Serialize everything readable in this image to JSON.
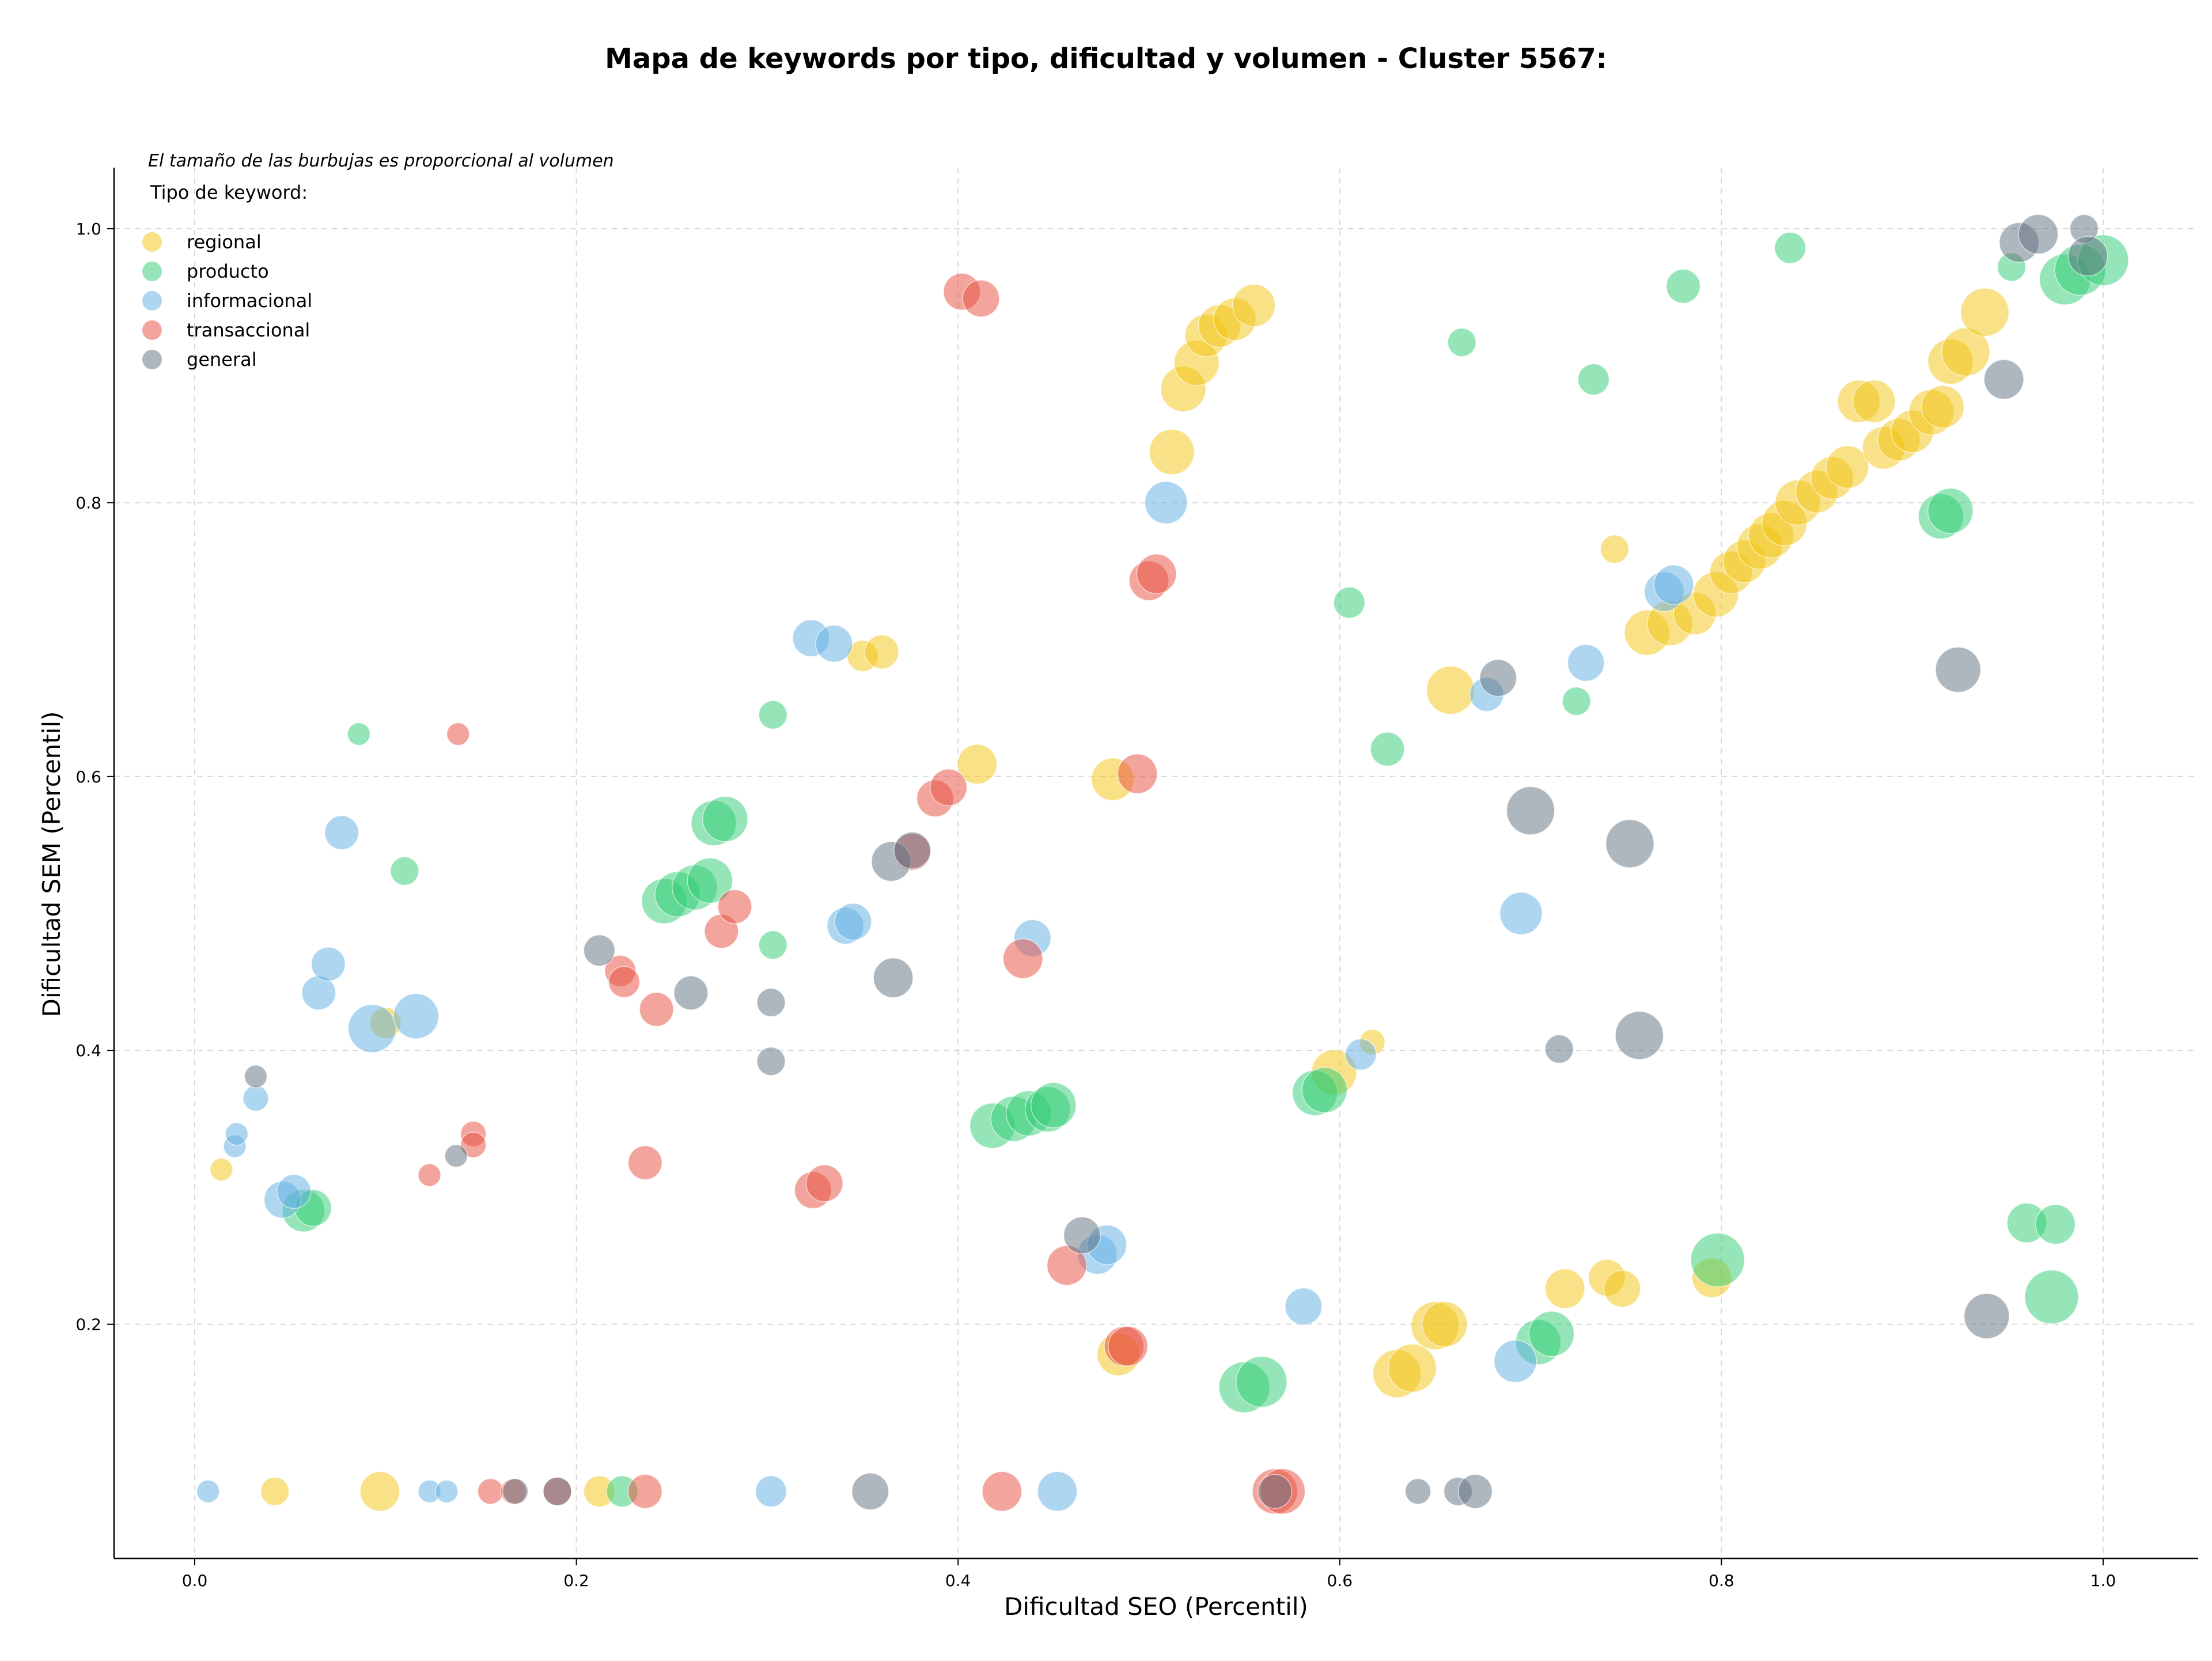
{
  "chart_data": {
    "type": "scatter",
    "title": "Mapa de keywords por tipo, dificultad y volumen - Cluster 5567:",
    "xlabel": "Dificultad SEO (Percentil)",
    "ylabel": "Dificultad SEM (Percentil)",
    "note": "El tamaño de las burbujas es proporcional al volumen",
    "legend_title": "Tipo de keyword:",
    "legend_position": "top-left",
    "grid": true,
    "xlim": [
      -0.04,
      1.065
    ],
    "ylim": [
      0.035,
      1.045
    ],
    "xticks": [
      "0.0",
      "0.2",
      "0.4",
      "0.6",
      "0.8",
      "1.0"
    ],
    "yticks": [
      "0.2",
      "0.4",
      "0.6",
      "0.8",
      "1.0"
    ],
    "series": [
      {
        "name": "regional",
        "color": "#F1C40F",
        "points": [
          [
            0.014,
            0.313,
            8
          ],
          [
            0.042,
            0.078,
            10
          ],
          [
            0.097,
            0.078,
            14
          ],
          [
            0.212,
            0.078,
            11
          ],
          [
            0.1,
            0.42,
            11
          ],
          [
            0.35,
            0.688,
            11
          ],
          [
            0.36,
            0.691,
            12
          ],
          [
            0.41,
            0.609,
            14
          ],
          [
            0.481,
            0.598,
            15
          ],
          [
            0.484,
            0.178,
            15
          ],
          [
            0.512,
            0.837,
            16
          ],
          [
            0.518,
            0.883,
            16
          ],
          [
            0.525,
            0.902,
            16
          ],
          [
            0.53,
            0.922,
            15
          ],
          [
            0.537,
            0.929,
            15
          ],
          [
            0.545,
            0.934,
            15
          ],
          [
            0.555,
            0.944,
            15
          ],
          [
            0.597,
            0.384,
            16
          ],
          [
            0.617,
            0.406,
            9
          ],
          [
            0.63,
            0.164,
            17
          ],
          [
            0.638,
            0.168,
            17
          ],
          [
            0.65,
            0.199,
            17
          ],
          [
            0.655,
            0.2,
            16
          ],
          [
            0.658,
            0.663,
            17
          ],
          [
            0.718,
            0.226,
            14
          ],
          [
            0.74,
            0.234,
            13
          ],
          [
            0.748,
            0.226,
            13
          ],
          [
            0.744,
            0.766,
            10
          ],
          [
            0.761,
            0.705,
            16
          ],
          [
            0.773,
            0.712,
            16
          ],
          [
            0.786,
            0.719,
            15
          ],
          [
            0.795,
            0.234,
            14
          ],
          [
            0.797,
            0.733,
            16
          ],
          [
            0.805,
            0.749,
            15
          ],
          [
            0.812,
            0.757,
            15
          ],
          [
            0.82,
            0.768,
            16
          ],
          [
            0.826,
            0.776,
            16
          ],
          [
            0.833,
            0.785,
            16
          ],
          [
            0.84,
            0.8,
            16
          ],
          [
            0.85,
            0.808,
            15
          ],
          [
            0.858,
            0.818,
            15
          ],
          [
            0.866,
            0.826,
            15
          ],
          [
            0.872,
            0.874,
            15
          ],
          [
            0.88,
            0.874,
            15
          ],
          [
            0.885,
            0.84,
            15
          ],
          [
            0.893,
            0.846,
            15
          ],
          [
            0.9,
            0.852,
            15
          ],
          [
            0.91,
            0.866,
            16
          ],
          [
            0.916,
            0.87,
            15
          ],
          [
            0.92,
            0.903,
            16
          ],
          [
            0.928,
            0.91,
            17
          ],
          [
            0.938,
            0.939,
            17
          ]
        ]
      },
      {
        "name": "producto",
        "color": "#2ECC71",
        "points": [
          [
            0.086,
            0.631,
            8
          ],
          [
            0.11,
            0.531,
            10
          ],
          [
            0.057,
            0.283,
            15
          ],
          [
            0.062,
            0.285,
            13
          ],
          [
            0.224,
            0.078,
            11
          ],
          [
            0.246,
            0.509,
            16
          ],
          [
            0.253,
            0.514,
            16
          ],
          [
            0.262,
            0.519,
            16
          ],
          [
            0.27,
            0.524,
            16
          ],
          [
            0.272,
            0.566,
            16
          ],
          [
            0.278,
            0.569,
            16
          ],
          [
            0.303,
            0.645,
            10
          ],
          [
            0.303,
            0.477,
            10
          ],
          [
            0.418,
            0.345,
            16
          ],
          [
            0.429,
            0.35,
            16
          ],
          [
            0.437,
            0.354,
            16
          ],
          [
            0.447,
            0.357,
            16
          ],
          [
            0.45,
            0.36,
            16
          ],
          [
            0.55,
            0.154,
            18
          ],
          [
            0.559,
            0.158,
            18
          ],
          [
            0.587,
            0.369,
            16
          ],
          [
            0.592,
            0.371,
            16
          ],
          [
            0.605,
            0.727,
            11
          ],
          [
            0.625,
            0.62,
            12
          ],
          [
            0.664,
            0.917,
            10
          ],
          [
            0.724,
            0.655,
            10
          ],
          [
            0.733,
            0.89,
            11
          ],
          [
            0.704,
            0.187,
            16
          ],
          [
            0.711,
            0.193,
            16
          ],
          [
            0.78,
            0.958,
            12
          ],
          [
            0.798,
            0.247,
            19
          ],
          [
            0.836,
            0.986,
            11
          ],
          [
            0.915,
            0.79,
            16
          ],
          [
            0.92,
            0.794,
            16
          ],
          [
            0.952,
            0.972,
            10
          ],
          [
            0.96,
            0.274,
            14
          ],
          [
            0.975,
            0.273,
            14
          ],
          [
            0.973,
            0.22,
            19
          ],
          [
            0.98,
            0.963,
            18
          ],
          [
            0.988,
            0.97,
            18
          ],
          [
            1.0,
            0.977,
            18
          ]
        ]
      },
      {
        "name": "informacional",
        "color": "#5DADE2",
        "points": [
          [
            0.007,
            0.078,
            8
          ],
          [
            0.021,
            0.33,
            8
          ],
          [
            0.022,
            0.339,
            8
          ],
          [
            0.032,
            0.365,
            9
          ],
          [
            0.046,
            0.291,
            13
          ],
          [
            0.052,
            0.297,
            12
          ],
          [
            0.065,
            0.442,
            12
          ],
          [
            0.07,
            0.463,
            12
          ],
          [
            0.077,
            0.559,
            12
          ],
          [
            0.093,
            0.416,
            17
          ],
          [
            0.116,
            0.425,
            16
          ],
          [
            0.123,
            0.078,
            8
          ],
          [
            0.132,
            0.078,
            8
          ],
          [
            0.302,
            0.078,
            11
          ],
          [
            0.323,
            0.701,
            13
          ],
          [
            0.335,
            0.697,
            13
          ],
          [
            0.341,
            0.491,
            13
          ],
          [
            0.345,
            0.494,
            13
          ],
          [
            0.439,
            0.482,
            13
          ],
          [
            0.452,
            0.078,
            14
          ],
          [
            0.473,
            0.251,
            14
          ],
          [
            0.478,
            0.258,
            14
          ],
          [
            0.509,
            0.8,
            15
          ],
          [
            0.581,
            0.213,
            13
          ],
          [
            0.611,
            0.397,
            11
          ],
          [
            0.677,
            0.66,
            12
          ],
          [
            0.692,
            0.173,
            15
          ],
          [
            0.695,
            0.5,
            15
          ],
          [
            0.729,
            0.683,
            13
          ],
          [
            0.77,
            0.735,
            14
          ],
          [
            0.775,
            0.74,
            14
          ]
        ]
      },
      {
        "name": "transaccional",
        "color": "#E74C3C",
        "points": [
          [
            0.123,
            0.309,
            8
          ],
          [
            0.138,
            0.631,
            8
          ],
          [
            0.146,
            0.339,
            9
          ],
          [
            0.146,
            0.331,
            9
          ],
          [
            0.155,
            0.078,
            9
          ],
          [
            0.167,
            0.078,
            9
          ],
          [
            0.19,
            0.078,
            10
          ],
          [
            0.223,
            0.458,
            11
          ],
          [
            0.225,
            0.45,
            11
          ],
          [
            0.236,
            0.318,
            12
          ],
          [
            0.236,
            0.078,
            12
          ],
          [
            0.242,
            0.43,
            12
          ],
          [
            0.276,
            0.487,
            12
          ],
          [
            0.283,
            0.505,
            12
          ],
          [
            0.324,
            0.298,
            13
          ],
          [
            0.33,
            0.303,
            13
          ],
          [
            0.376,
            0.545,
            13
          ],
          [
            0.388,
            0.584,
            13
          ],
          [
            0.395,
            0.592,
            13
          ],
          [
            0.402,
            0.954,
            13
          ],
          [
            0.412,
            0.949,
            13
          ],
          [
            0.423,
            0.078,
            14
          ],
          [
            0.434,
            0.467,
            14
          ],
          [
            0.457,
            0.243,
            14
          ],
          [
            0.487,
            0.184,
            14
          ],
          [
            0.489,
            0.184,
            14
          ],
          [
            0.5,
            0.743,
            14
          ],
          [
            0.504,
            0.748,
            14
          ],
          [
            0.494,
            0.602,
            14
          ],
          [
            0.566,
            0.078,
            16
          ],
          [
            0.57,
            0.078,
            16
          ]
        ]
      },
      {
        "name": "general",
        "color": "#5D6D7E",
        "points": [
          [
            0.032,
            0.381,
            8
          ],
          [
            0.137,
            0.323,
            8
          ],
          [
            0.168,
            0.078,
            9
          ],
          [
            0.19,
            0.078,
            10
          ],
          [
            0.212,
            0.473,
            11
          ],
          [
            0.26,
            0.442,
            12
          ],
          [
            0.302,
            0.392,
            10
          ],
          [
            0.302,
            0.435,
            10
          ],
          [
            0.354,
            0.078,
            13
          ],
          [
            0.365,
            0.538,
            14
          ],
          [
            0.366,
            0.453,
            14
          ],
          [
            0.376,
            0.546,
            13
          ],
          [
            0.465,
            0.265,
            13
          ],
          [
            0.566,
            0.078,
            12
          ],
          [
            0.641,
            0.078,
            9
          ],
          [
            0.662,
            0.078,
            10
          ],
          [
            0.671,
            0.078,
            12
          ],
          [
            0.683,
            0.672,
            13
          ],
          [
            0.7,
            0.575,
            17
          ],
          [
            0.715,
            0.401,
            10
          ],
          [
            0.752,
            0.551,
            17
          ],
          [
            0.757,
            0.411,
            17
          ],
          [
            0.924,
            0.678,
            16
          ],
          [
            0.939,
            0.206,
            16
          ],
          [
            0.948,
            0.89,
            14
          ],
          [
            0.956,
            0.99,
            14
          ],
          [
            0.966,
            0.996,
            14
          ],
          [
            0.99,
            1.0,
            10
          ],
          [
            0.992,
            0.98,
            14
          ]
        ]
      }
    ]
  }
}
